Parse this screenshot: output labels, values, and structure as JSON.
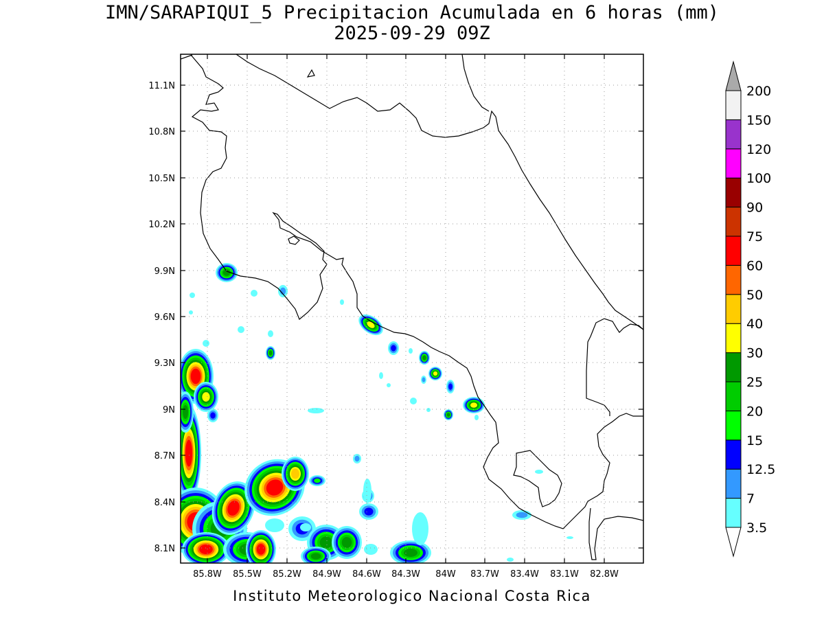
{
  "title": {
    "line1": "IMN/SARAPIQUI_5 Precipitacion Acumulada en 6 horas (mm)",
    "line2": "2025-09-29 09Z"
  },
  "credit": "Instituto Meteorologico Nacional Costa Rica",
  "map": {
    "lat_ticks": [
      "11.1N",
      "10.8N",
      "10.5N",
      "10.2N",
      "9.9N",
      "9.6N",
      "9.3N",
      "9N",
      "8.7N",
      "8.4N",
      "8.1N"
    ],
    "lon_ticks": [
      "85.8W",
      "85.5W",
      "85.2W",
      "84.9W",
      "84.6W",
      "84.3W",
      "84W",
      "83.7W",
      "83.4W",
      "83.1W",
      "82.8W"
    ],
    "grid": true
  },
  "legend": {
    "levels": [
      "3.5",
      "7",
      "12.5",
      "15",
      "20",
      "25",
      "30",
      "40",
      "50",
      "60",
      "75",
      "90",
      "100",
      "120",
      "150",
      "200"
    ],
    "colors": [
      "#66ffff",
      "#3399ff",
      "#0000ff",
      "#00ff00",
      "#00cc00",
      "#009900",
      "#ffff00",
      "#ffcc00",
      "#ff6600",
      "#ff0000",
      "#cc3300",
      "#990000",
      "#ff00ff",
      "#9933cc",
      "#f2f2f2",
      "#aaaaaa"
    ]
  }
}
